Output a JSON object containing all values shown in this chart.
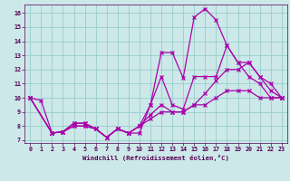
{
  "xlabel": "Windchill (Refroidissement éolien,°C)",
  "bg_color": "#cce8e8",
  "line_color": "#aa00aa",
  "grid_color": "#99cccc",
  "xlim": [
    -0.5,
    23.5
  ],
  "ylim": [
    6.8,
    16.6
  ],
  "xticks": [
    0,
    1,
    2,
    3,
    4,
    5,
    6,
    7,
    8,
    9,
    10,
    11,
    12,
    13,
    14,
    15,
    16,
    17,
    18,
    19,
    20,
    21,
    22,
    23
  ],
  "yticks": [
    7,
    8,
    9,
    10,
    11,
    12,
    13,
    14,
    15,
    16
  ],
  "s1x": [
    0,
    1,
    2,
    3,
    4,
    5,
    6,
    7,
    8,
    9,
    10,
    11,
    12,
    13,
    14,
    15,
    16,
    17,
    18,
    19,
    20,
    21,
    22,
    23
  ],
  "s1y": [
    10,
    9.8,
    7.5,
    7.6,
    8.2,
    8.2,
    7.8,
    7.2,
    7.8,
    7.5,
    7.5,
    9.5,
    13.2,
    13.2,
    11.4,
    15.7,
    16.3,
    15.5,
    13.7,
    12.5,
    11.5,
    11.0,
    10.0,
    10.0
  ],
  "s2x": [
    0,
    2,
    3,
    4,
    5,
    6,
    7,
    8,
    9,
    10,
    11,
    12,
    13,
    14,
    15,
    16,
    17,
    18,
    19,
    20,
    21,
    22,
    23
  ],
  "s2y": [
    10,
    7.5,
    7.6,
    8.2,
    8.2,
    7.8,
    7.2,
    7.8,
    7.5,
    8.0,
    9.5,
    11.5,
    9.5,
    9.2,
    11.5,
    11.5,
    11.5,
    13.7,
    12.5,
    12.5,
    11.5,
    11.0,
    10.0
  ],
  "s3x": [
    0,
    2,
    3,
    4,
    5,
    6,
    7,
    8,
    9,
    10,
    11,
    12,
    13,
    14,
    15,
    16,
    17,
    18,
    19,
    20,
    21,
    22,
    23
  ],
  "s3y": [
    10,
    7.5,
    7.6,
    8.0,
    8.0,
    7.8,
    7.2,
    7.8,
    7.5,
    8.0,
    8.8,
    9.5,
    9.0,
    9.0,
    9.5,
    10.3,
    11.2,
    12.0,
    12.0,
    12.5,
    11.5,
    10.5,
    10.0
  ],
  "s4x": [
    0,
    2,
    3,
    4,
    5,
    6,
    7,
    8,
    9,
    10,
    11,
    12,
    13,
    14,
    15,
    16,
    17,
    18,
    19,
    20,
    21,
    22,
    23
  ],
  "s4y": [
    10,
    7.5,
    7.6,
    8.0,
    8.0,
    7.8,
    7.2,
    7.8,
    7.5,
    8.0,
    8.5,
    9.0,
    9.0,
    9.0,
    9.5,
    9.5,
    10.0,
    10.5,
    10.5,
    10.5,
    10.0,
    10.0,
    10.0
  ]
}
